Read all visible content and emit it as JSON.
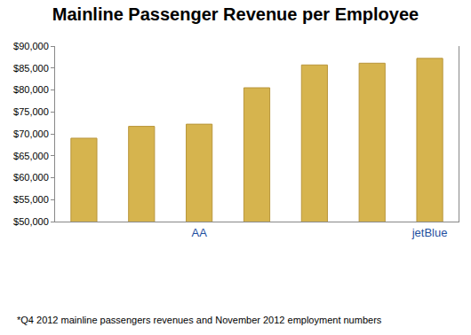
{
  "chart_data": {
    "type": "bar",
    "title": "Mainline Passenger Revenue per Employee",
    "categories": [
      null,
      null,
      "AA",
      null,
      null,
      null,
      "jetBlue"
    ],
    "values": [
      69000,
      71700,
      72200,
      80500,
      85700,
      86100,
      87200
    ],
    "color": "#d6b44e",
    "ylim": [
      50000,
      90000
    ],
    "yticks": [
      {
        "value": 50000,
        "label": "$50,000"
      },
      {
        "value": 55000,
        "label": "$55,000"
      },
      {
        "value": 60000,
        "label": "$60,000"
      },
      {
        "value": 65000,
        "label": "$65,000"
      },
      {
        "value": 70000,
        "label": "$70,000"
      },
      {
        "value": 75000,
        "label": "$75,000"
      },
      {
        "value": 80000,
        "label": "$80,000"
      },
      {
        "value": 85000,
        "label": "$85,000"
      },
      {
        "value": 90000,
        "label": "$90,000"
      }
    ],
    "grid": false,
    "annotations": [
      "*Q4 2012 mainline passengers revenues and November 2012 employment numbers"
    ]
  }
}
